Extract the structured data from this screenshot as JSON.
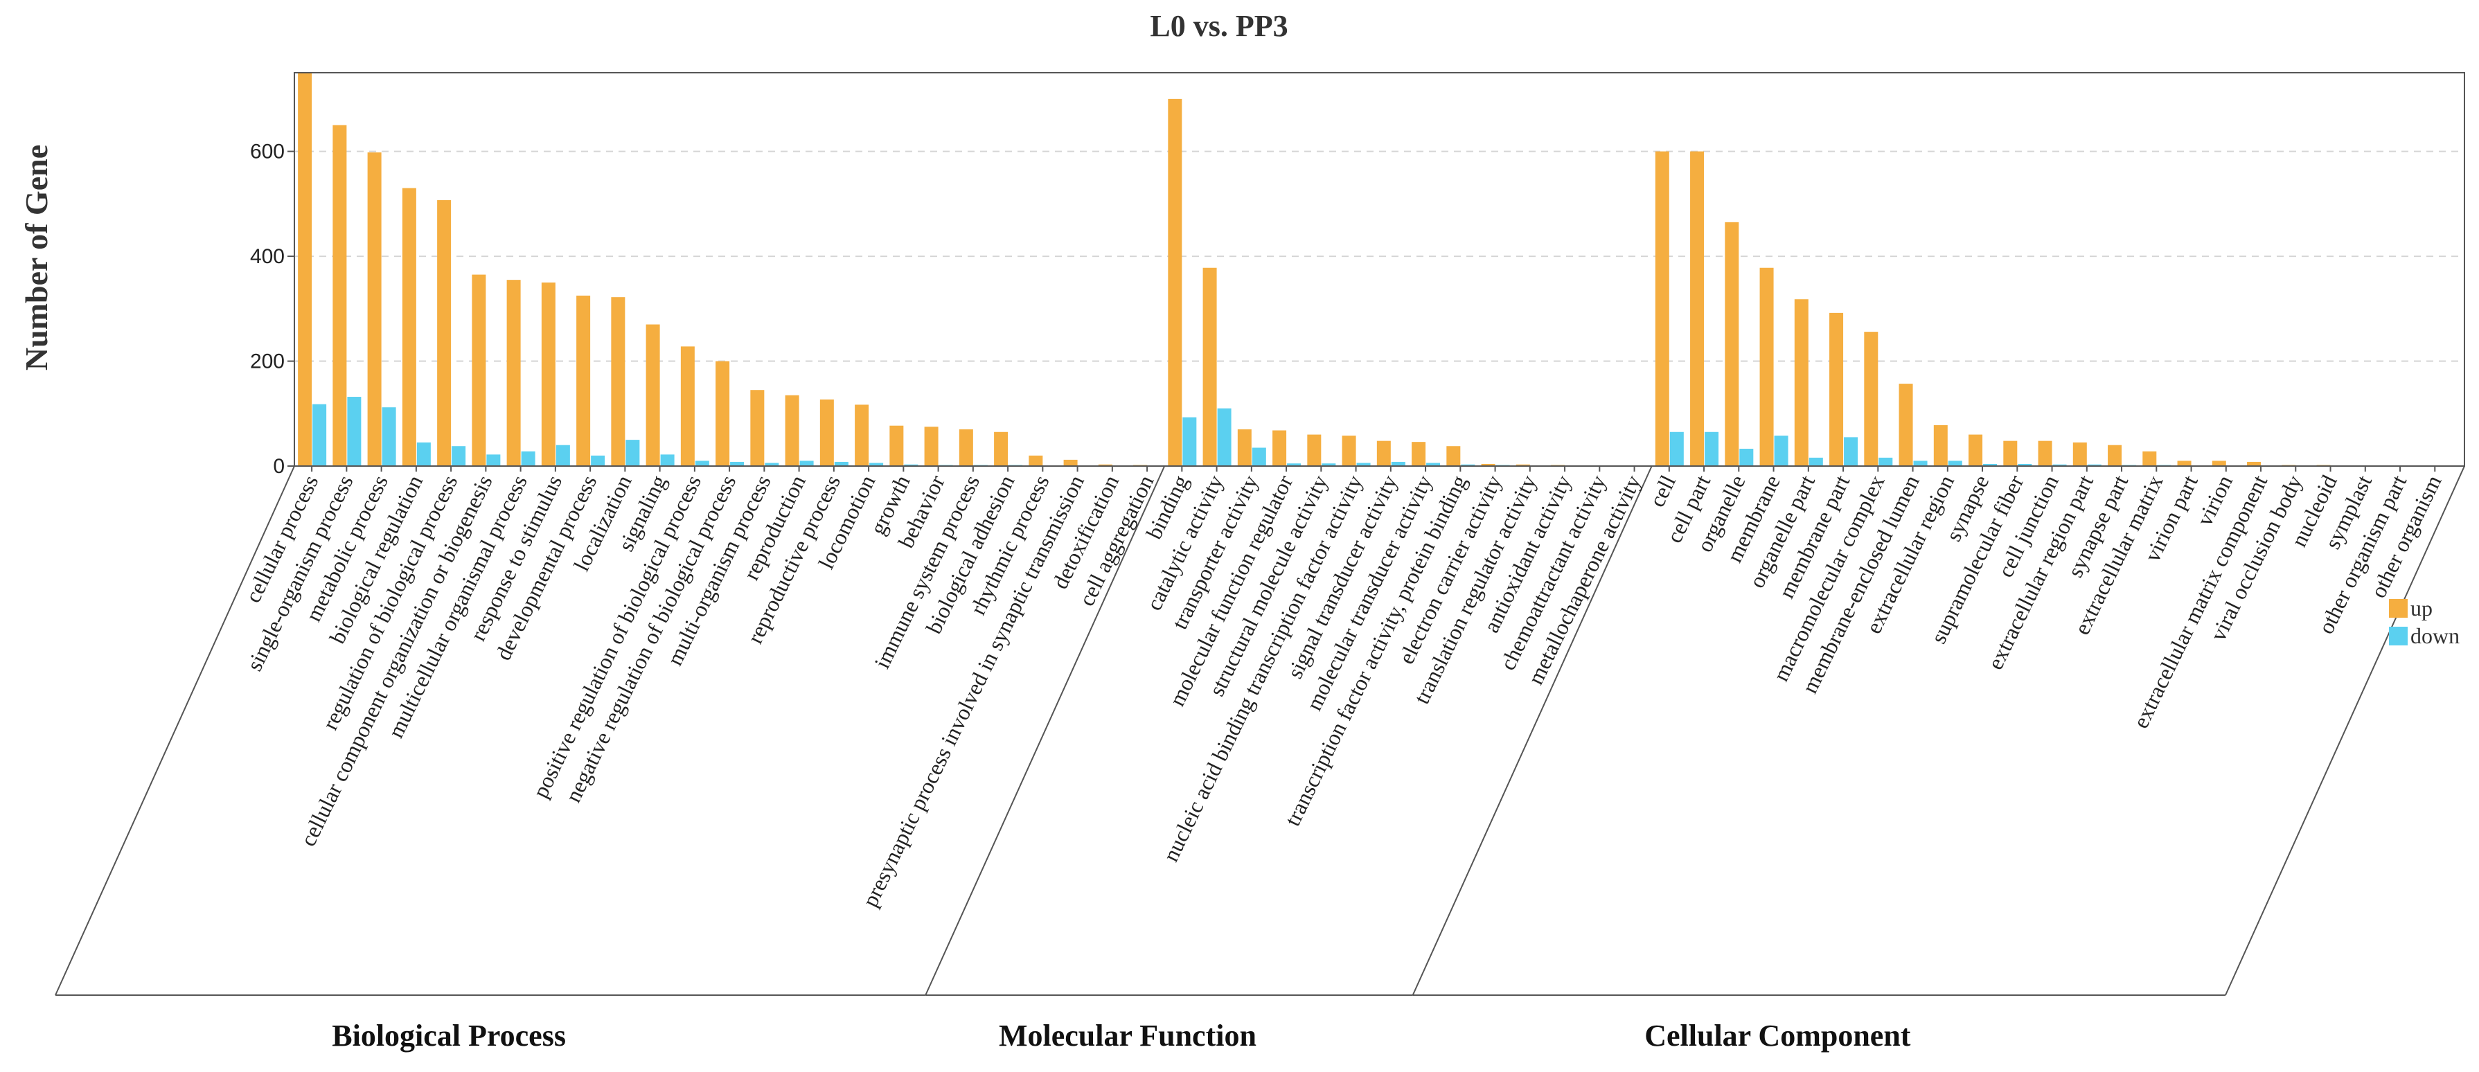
{
  "chart_data": {
    "type": "bar",
    "title": "L0 vs. PP3",
    "ylabel": "Number of Gene",
    "ylim": [
      0,
      750
    ],
    "yticks": [
      0,
      200,
      400,
      600
    ],
    "grid": true,
    "legend_position": "right",
    "colors": {
      "up": "#F5AE40",
      "down": "#5BD0F0",
      "axis": "#555555",
      "grid": "#d5d5d5"
    },
    "series": [
      {
        "name": "up",
        "color": "#F5AE40"
      },
      {
        "name": "down",
        "color": "#5BD0F0"
      }
    ],
    "groups": [
      {
        "name": "Biological Process",
        "categories": [
          "cellular process",
          "single-organism process",
          "metabolic process",
          "biological regulation",
          "regulation of biological process",
          "cellular component organization or biogenesis",
          "multicellular organismal process",
          "response to stimulus",
          "developmental process",
          "localization",
          "signaling",
          "positive regulation of biological process",
          "negative regulation of biological process",
          "multi-organism process",
          "reproduction",
          "reproductive process",
          "locomotion",
          "growth",
          "behavior",
          "immune system process",
          "biological adhesion",
          "rhythmic process",
          "presynaptic process involved in synaptic transmission",
          "detoxification",
          "cell aggregation"
        ],
        "up": [
          750,
          650,
          598,
          530,
          507,
          365,
          355,
          350,
          325,
          322,
          270,
          228,
          200,
          145,
          135,
          127,
          117,
          77,
          75,
          70,
          65,
          20,
          12,
          3,
          2
        ],
        "down": [
          118,
          132,
          112,
          45,
          38,
          22,
          28,
          40,
          20,
          50,
          22,
          10,
          8,
          6,
          10,
          8,
          6,
          3,
          2,
          2,
          2,
          1,
          1,
          1,
          1
        ]
      },
      {
        "name": "Molecular Function",
        "categories": [
          "binding",
          "catalytic activity",
          "transporter activity",
          "molecular function regulator",
          "structural molecule activity",
          "nucleic acid binding transcription factor activity",
          "signal transducer activity",
          "molecular transducer activity",
          "transcription factor activity, protein binding",
          "electron carrier activity",
          "translation regulator activity",
          "antioxidant activity",
          "chemoattractant activity",
          "metallochaperone activity"
        ],
        "up": [
          700,
          378,
          70,
          68,
          60,
          58,
          48,
          46,
          38,
          4,
          3,
          2,
          1,
          1
        ],
        "down": [
          93,
          110,
          35,
          5,
          5,
          6,
          8,
          6,
          3,
          2,
          1,
          1,
          1,
          1
        ]
      },
      {
        "name": "Cellular Component",
        "categories": [
          "cell",
          "cell part",
          "organelle",
          "membrane",
          "organelle part",
          "membrane part",
          "macromolecular complex",
          "membrane-enclosed lumen",
          "extracellular region",
          "synapse",
          "supramolecular fiber",
          "cell junction",
          "extracellular region part",
          "synapse part",
          "extracellular matrix",
          "virion part",
          "virion",
          "extracellular matrix component",
          "viral occlusion body",
          "nucleoid",
          "symplast",
          "other organism part",
          "other organism"
        ],
        "up": [
          600,
          600,
          465,
          378,
          318,
          292,
          256,
          157,
          78,
          60,
          48,
          48,
          45,
          40,
          28,
          10,
          10,
          8,
          2,
          2,
          1,
          1,
          1
        ],
        "down": [
          65,
          65,
          33,
          58,
          16,
          55,
          16,
          10,
          10,
          4,
          4,
          3,
          3,
          2,
          2,
          1,
          1,
          1,
          1,
          1,
          1,
          1,
          1
        ]
      }
    ]
  }
}
